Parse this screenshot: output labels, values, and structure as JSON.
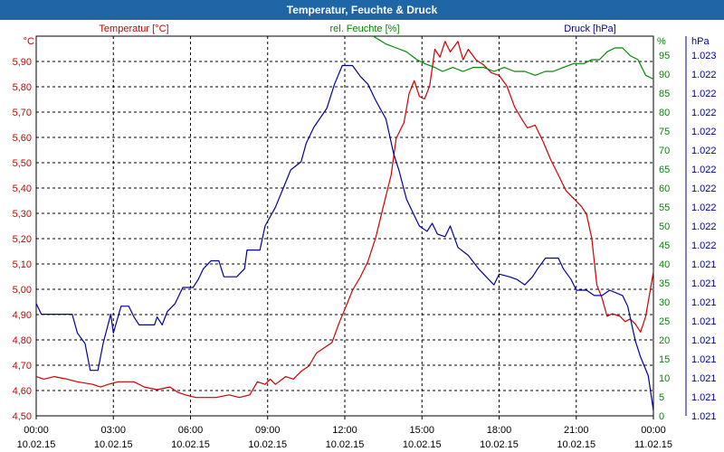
{
  "title": "Temperatur, Feuchte & Druck",
  "colors": {
    "temperature": "#cc0000",
    "humidity": "#008800",
    "pressure": "#000099",
    "titlebar": "#1f66a6"
  },
  "chart_data": {
    "type": "line",
    "title": "Temperatur, Feuchte & Druck",
    "x_labels": [
      {
        "time": "00:00",
        "date": "10.02.15"
      },
      {
        "time": "03:00",
        "date": "10.02.15"
      },
      {
        "time": "06:00",
        "date": "10.02.15"
      },
      {
        "time": "09:00",
        "date": "10.02.15"
      },
      {
        "time": "12:00",
        "date": "10.02.15"
      },
      {
        "time": "15:00",
        "date": "10.02.15"
      },
      {
        "time": "18:00",
        "date": "10.02.15"
      },
      {
        "time": "21:00",
        "date": "10.02.15"
      },
      {
        "time": "00:00",
        "date": "11.02.15"
      }
    ],
    "x_range_hours": [
      0,
      24
    ],
    "series": [
      {
        "name": "Temperatur [°C]",
        "unit": "°C",
        "axis": "left",
        "color": "#cc0000",
        "ylim": [
          4.5,
          5.95
        ],
        "ticks": [
          "4,50",
          "4,60",
          "4,70",
          "4,80",
          "4,90",
          "5,00",
          "5,10",
          "5,20",
          "5,30",
          "5,40",
          "5,50",
          "5,60",
          "5,70",
          "5,80",
          "5,90"
        ],
        "points": [
          [
            0,
            4.65
          ],
          [
            0.3,
            4.64
          ],
          [
            0.7,
            4.65
          ],
          [
            1.2,
            4.64
          ],
          [
            1.6,
            4.63
          ],
          [
            2.2,
            4.62
          ],
          [
            2.5,
            4.61
          ],
          [
            2.8,
            4.62
          ],
          [
            3.2,
            4.63
          ],
          [
            3.8,
            4.63
          ],
          [
            4.2,
            4.61
          ],
          [
            4.7,
            4.6
          ],
          [
            5.2,
            4.61
          ],
          [
            5.5,
            4.59
          ],
          [
            5.8,
            4.58
          ],
          [
            6.2,
            4.57
          ],
          [
            7,
            4.57
          ],
          [
            7.5,
            4.58
          ],
          [
            7.9,
            4.57
          ],
          [
            8.3,
            4.58
          ],
          [
            8.6,
            4.63
          ],
          [
            8.9,
            4.62
          ],
          [
            9.1,
            4.64
          ],
          [
            9.3,
            4.62
          ],
          [
            9.7,
            4.65
          ],
          [
            10,
            4.64
          ],
          [
            10.3,
            4.67
          ],
          [
            10.6,
            4.69
          ],
          [
            10.9,
            4.74
          ],
          [
            11.2,
            4.76
          ],
          [
            11.5,
            4.78
          ],
          [
            11.8,
            4.86
          ],
          [
            12.1,
            4.93
          ],
          [
            12.3,
            4.98
          ],
          [
            12.6,
            5.03
          ],
          [
            12.9,
            5.09
          ],
          [
            13.2,
            5.18
          ],
          [
            13.5,
            5.3
          ],
          [
            13.8,
            5.42
          ],
          [
            14,
            5.56
          ],
          [
            14.3,
            5.62
          ],
          [
            14.5,
            5.73
          ],
          [
            14.7,
            5.78
          ],
          [
            14.9,
            5.72
          ],
          [
            15.1,
            5.71
          ],
          [
            15.3,
            5.76
          ],
          [
            15.5,
            5.9
          ],
          [
            15.7,
            5.87
          ],
          [
            15.9,
            5.93
          ],
          [
            16.1,
            5.89
          ],
          [
            16.4,
            5.93
          ],
          [
            16.6,
            5.86
          ],
          [
            16.8,
            5.9
          ],
          [
            17.1,
            5.86
          ],
          [
            17.4,
            5.84
          ],
          [
            17.7,
            5.81
          ],
          [
            18,
            5.8
          ],
          [
            18.3,
            5.76
          ],
          [
            18.6,
            5.68
          ],
          [
            18.9,
            5.63
          ],
          [
            19.1,
            5.6
          ],
          [
            19.4,
            5.61
          ],
          [
            19.7,
            5.55
          ],
          [
            20,
            5.48
          ],
          [
            20.3,
            5.42
          ],
          [
            20.6,
            5.36
          ],
          [
            20.9,
            5.33
          ],
          [
            21.2,
            5.3
          ],
          [
            21.4,
            5.27
          ],
          [
            21.6,
            5.18
          ],
          [
            21.8,
            5.0
          ],
          [
            22,
            4.95
          ],
          [
            22.2,
            4.88
          ],
          [
            22.4,
            4.89
          ],
          [
            22.7,
            4.88
          ],
          [
            22.9,
            4.86
          ],
          [
            23.1,
            4.87
          ],
          [
            23.3,
            4.85
          ],
          [
            23.5,
            4.82
          ],
          [
            23.7,
            4.88
          ],
          [
            24,
            5.05
          ]
        ]
      },
      {
        "name": "rel. Feuchte [%]",
        "unit": "%",
        "axis": "right",
        "color": "#008800",
        "ylim": [
          0,
          97
        ],
        "ticks": [
          "0",
          "5",
          "10",
          "15",
          "20",
          "25",
          "30",
          "35",
          "40",
          "45",
          "50",
          "55",
          "60",
          "65",
          "70",
          "75",
          "80",
          "85",
          "90",
          "95"
        ],
        "points": [
          [
            13.1,
            97
          ],
          [
            13.6,
            95
          ],
          [
            14,
            94
          ],
          [
            14.4,
            93
          ],
          [
            14.8,
            91
          ],
          [
            15.1,
            90
          ],
          [
            15.5,
            89
          ],
          [
            15.8,
            88
          ],
          [
            16.2,
            89
          ],
          [
            16.6,
            88
          ],
          [
            17,
            89
          ],
          [
            17.4,
            89
          ],
          [
            17.8,
            88
          ],
          [
            18.2,
            89
          ],
          [
            18.6,
            88
          ],
          [
            19,
            88
          ],
          [
            19.4,
            87
          ],
          [
            19.8,
            88
          ],
          [
            20.1,
            88
          ],
          [
            20.5,
            89
          ],
          [
            20.9,
            90
          ],
          [
            21.3,
            90
          ],
          [
            21.6,
            91
          ],
          [
            21.9,
            91
          ],
          [
            22.2,
            93
          ],
          [
            22.5,
            94
          ],
          [
            22.8,
            94
          ],
          [
            23.1,
            92
          ],
          [
            23.4,
            91
          ],
          [
            23.7,
            87
          ],
          [
            24,
            86
          ]
        ]
      },
      {
        "name": "Druck [hPa]",
        "unit": "hPa",
        "axis": "right2",
        "color": "#000099",
        "ylim": [
          1021.35,
          1022.77
        ],
        "ticks": [
          "1.021",
          "1.021",
          "1.021",
          "1.021",
          "1.021",
          "1.021",
          "1.021",
          "1.021",
          "1.021",
          "1.022",
          "1.022",
          "1.022",
          "1.022",
          "1.022",
          "1.022",
          "1.022",
          "1.022",
          "1.022",
          "1.022",
          "1.023"
        ],
        "points": [
          [
            0,
            1021.77
          ],
          [
            0.2,
            1021.73
          ],
          [
            1.4,
            1021.73
          ],
          [
            1.6,
            1021.66
          ],
          [
            1.9,
            1021.62
          ],
          [
            2.1,
            1021.52
          ],
          [
            2.4,
            1021.52
          ],
          [
            2.6,
            1021.62
          ],
          [
            2.9,
            1021.73
          ],
          [
            3,
            1021.66
          ],
          [
            3.3,
            1021.76
          ],
          [
            3.6,
            1021.76
          ],
          [
            3.8,
            1021.72
          ],
          [
            4,
            1021.69
          ],
          [
            4.6,
            1021.69
          ],
          [
            4.7,
            1021.72
          ],
          [
            4.9,
            1021.69
          ],
          [
            5.1,
            1021.74
          ],
          [
            5.4,
            1021.77
          ],
          [
            5.7,
            1021.83
          ],
          [
            6.1,
            1021.83
          ],
          [
            6.3,
            1021.86
          ],
          [
            6.5,
            1021.9
          ],
          [
            6.8,
            1021.93
          ],
          [
            7.1,
            1021.93
          ],
          [
            7.3,
            1021.87
          ],
          [
            7.8,
            1021.87
          ],
          [
            8.1,
            1021.9
          ],
          [
            8.2,
            1021.97
          ],
          [
            8.7,
            1021.97
          ],
          [
            8.9,
            1022.06
          ],
          [
            9.3,
            1022.13
          ],
          [
            9.6,
            1022.2
          ],
          [
            9.9,
            1022.27
          ],
          [
            10.3,
            1022.3
          ],
          [
            10.5,
            1022.37
          ],
          [
            10.8,
            1022.43
          ],
          [
            11.3,
            1022.5
          ],
          [
            11.6,
            1022.59
          ],
          [
            11.9,
            1022.66
          ],
          [
            12.3,
            1022.66
          ],
          [
            12.6,
            1022.62
          ],
          [
            12.9,
            1022.59
          ],
          [
            13.2,
            1022.53
          ],
          [
            13.6,
            1022.46
          ],
          [
            13.9,
            1022.33
          ],
          [
            14.1,
            1022.27
          ],
          [
            14.4,
            1022.16
          ],
          [
            14.7,
            1022.1
          ],
          [
            14.9,
            1022.06
          ],
          [
            15.2,
            1022.04
          ],
          [
            15.4,
            1022.07
          ],
          [
            15.6,
            1022.03
          ],
          [
            15.9,
            1022.02
          ],
          [
            16.1,
            1022.06
          ],
          [
            16.4,
            1021.98
          ],
          [
            16.8,
            1021.95
          ],
          [
            17.2,
            1021.9
          ],
          [
            17.6,
            1021.86
          ],
          [
            17.8,
            1021.84
          ],
          [
            18,
            1021.88
          ],
          [
            18.4,
            1021.87
          ],
          [
            18.7,
            1021.86
          ],
          [
            19,
            1021.84
          ],
          [
            19.3,
            1021.87
          ],
          [
            19.5,
            1021.9
          ],
          [
            19.8,
            1021.94
          ],
          [
            20.3,
            1021.94
          ],
          [
            20.5,
            1021.9
          ],
          [
            20.8,
            1021.86
          ],
          [
            21,
            1021.82
          ],
          [
            21.4,
            1021.82
          ],
          [
            21.7,
            1021.8
          ],
          [
            22,
            1021.8
          ],
          [
            22.3,
            1021.82
          ],
          [
            22.8,
            1021.8
          ],
          [
            23,
            1021.76
          ],
          [
            23.3,
            1021.63
          ],
          [
            23.5,
            1021.57
          ],
          [
            23.8,
            1021.5
          ],
          [
            24,
            1021.37
          ]
        ]
      }
    ],
    "grid": true
  }
}
